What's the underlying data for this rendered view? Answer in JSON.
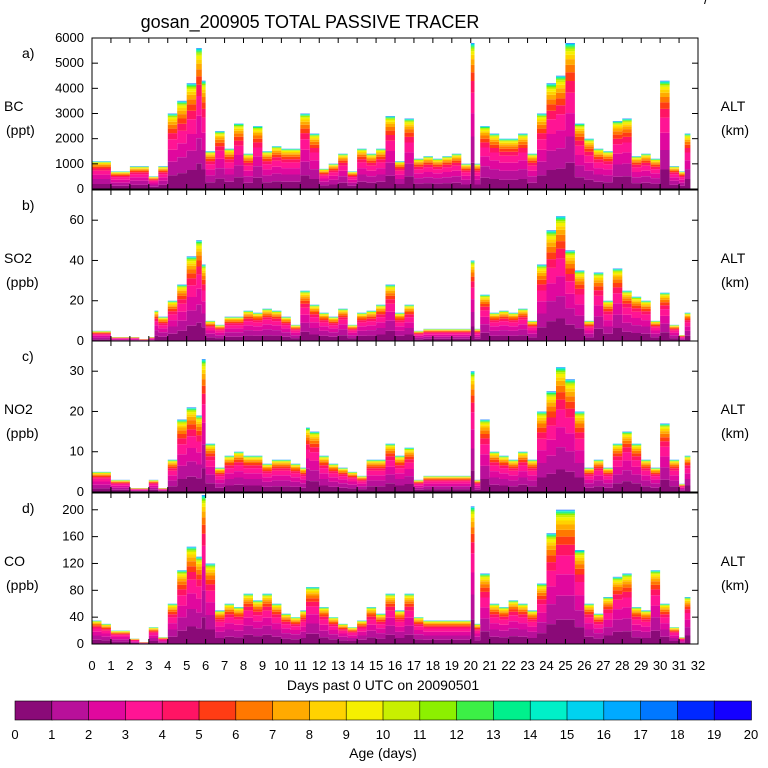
{
  "title": "gosan_200905 TOTAL PASSIVE TRACER",
  "xlabel": "Days past 0 UTC on 20090501",
  "x_ticks": [
    "0",
    "1",
    "2",
    "3",
    "4",
    "5",
    "6",
    "7",
    "8",
    "9",
    "10",
    "11",
    "12",
    "13",
    "14",
    "15",
    "16",
    "17",
    "18",
    "19",
    "20",
    "21",
    "22",
    "23",
    "24",
    "25",
    "26",
    "27",
    "28",
    "29",
    "30",
    "31",
    "32"
  ],
  "colorbar": {
    "label": "Age (days)",
    "ticks": [
      "0",
      "1",
      "2",
      "3",
      "4",
      "5",
      "6",
      "7",
      "8",
      "9",
      "10",
      "11",
      "12",
      "13",
      "14",
      "15",
      "16",
      "17",
      "18",
      "19",
      "20"
    ],
    "colors": [
      "#8a0a78",
      "#b8109a",
      "#e0089e",
      "#ff1494",
      "#ff1464",
      "#ff3c14",
      "#ff7800",
      "#ffaa00",
      "#ffd200",
      "#f5f000",
      "#c8f000",
      "#8cf000",
      "#3cf046",
      "#00f08c",
      "#00f0c8",
      "#00d2f0",
      "#00aaff",
      "#0078ff",
      "#0028ff",
      "#1400ff",
      "#7800ff"
    ]
  },
  "chart_data": [
    {
      "type": "area",
      "panel": "a)",
      "species": "BC",
      "unit": "(ppt)",
      "right_label": "ALT",
      "right_unit": "(km)",
      "xlim": [
        0,
        32
      ],
      "ylim": [
        0,
        6000
      ],
      "yticks": [
        "0",
        "1000",
        "2000",
        "3000",
        "4000",
        "5000",
        "6000"
      ],
      "x": [
        0,
        1,
        2,
        3,
        3.5,
        4,
        4.5,
        5,
        5.5,
        5.8,
        6,
        6.5,
        7,
        7.5,
        8,
        8.5,
        9,
        9.5,
        10,
        10.5,
        11,
        11.3,
        11.5,
        12,
        12.5,
        13,
        13.5,
        14,
        14.5,
        15,
        15.5,
        16,
        16.5,
        17,
        17.5,
        18,
        18.5,
        19,
        19.5,
        20,
        20.2,
        20.5,
        21,
        21.5,
        22,
        22.5,
        23,
        23.5,
        24,
        24.5,
        25,
        25.5,
        26,
        26.5,
        27,
        27.5,
        28,
        28.5,
        29,
        29.5,
        30,
        30.5,
        31,
        31.3
      ],
      "total": [
        1100,
        700,
        900,
        500,
        900,
        3000,
        3500,
        4200,
        5600,
        4300,
        1500,
        2300,
        1600,
        2600,
        1400,
        2500,
        1500,
        1700,
        1600,
        1600,
        3000,
        3000,
        2200,
        800,
        1000,
        1400,
        700,
        1600,
        1400,
        1600,
        2900,
        1100,
        2800,
        1200,
        1300,
        1200,
        1300,
        1400,
        1000,
        5800,
        1000,
        2500,
        2200,
        2000,
        2000,
        2200,
        1400,
        3000,
        4200,
        4500,
        5800,
        2600,
        2000,
        1600,
        1500,
        2700,
        2800,
        1300,
        1400,
        1200,
        4300,
        900,
        700,
        2200
      ]
    },
    {
      "type": "area",
      "panel": "b)",
      "species": "SO2",
      "unit": "(ppb)",
      "right_label": "ALT",
      "right_unit": "(km)",
      "xlim": [
        0,
        32
      ],
      "ylim": [
        0,
        75
      ],
      "yticks": [
        "0",
        "20",
        "40",
        "60"
      ],
      "x": [
        0,
        1,
        2,
        2.5,
        3,
        3.3,
        3.5,
        4,
        4.5,
        5,
        5.5,
        5.8,
        6,
        6.5,
        7,
        7.5,
        8,
        8.5,
        9,
        9.5,
        10,
        10.5,
        11,
        11.3,
        11.5,
        12,
        12.5,
        13,
        13.5,
        14,
        14.5,
        15,
        15.5,
        16,
        16.5,
        17,
        17.5,
        18,
        18.5,
        19,
        19.5,
        20,
        20.2,
        20.5,
        21,
        21.5,
        22,
        22.5,
        23,
        23.5,
        24,
        24.5,
        25,
        25.5,
        26,
        26.5,
        27,
        27.5,
        28,
        28.5,
        29,
        29.5,
        30,
        30.5,
        31,
        31.3
      ],
      "total": [
        5,
        2,
        2,
        1,
        2,
        15,
        12,
        20,
        28,
        42,
        50,
        38,
        10,
        8,
        12,
        12,
        15,
        14,
        16,
        15,
        12,
        8,
        25,
        25,
        18,
        14,
        12,
        16,
        8,
        14,
        15,
        18,
        28,
        14,
        18,
        5,
        6,
        6,
        6,
        6,
        6,
        40,
        6,
        23,
        14,
        15,
        14,
        16,
        10,
        38,
        55,
        62,
        45,
        35,
        10,
        34,
        20,
        36,
        25,
        22,
        20,
        10,
        24,
        8,
        3,
        14
      ]
    },
    {
      "type": "area",
      "panel": "c)",
      "species": "NO2",
      "unit": "(ppb)",
      "right_label": "ALT",
      "right_unit": "(km)",
      "xlim": [
        0,
        32
      ],
      "ylim": [
        0,
        37.5
      ],
      "yticks": [
        "0",
        "10",
        "20",
        "30"
      ],
      "x": [
        0,
        1,
        2,
        2.5,
        3,
        3.5,
        4,
        4.5,
        5,
        5.5,
        5.8,
        6,
        6.5,
        7,
        7.5,
        8,
        8.5,
        9,
        9.5,
        10,
        10.5,
        11,
        11.3,
        11.5,
        12,
        12.5,
        13,
        13.5,
        14,
        14.5,
        15,
        15.5,
        16,
        16.5,
        17,
        17.5,
        18,
        18.5,
        19,
        19.5,
        20,
        20.2,
        20.5,
        21,
        21.5,
        22,
        22.5,
        23,
        23.5,
        24,
        24.5,
        25,
        25.5,
        26,
        26.5,
        27,
        27.5,
        28,
        28.5,
        29,
        29.5,
        30,
        30.5,
        31,
        31.3
      ],
      "total": [
        5,
        3,
        1,
        1,
        3,
        1,
        8,
        18,
        21,
        19,
        33,
        12,
        6,
        9,
        10,
        9,
        9,
        7,
        8,
        8,
        7,
        6,
        16,
        15,
        9,
        7,
        6,
        5,
        4,
        8,
        8,
        12,
        9,
        11,
        3,
        4,
        4,
        4,
        4,
        4,
        30,
        3,
        18,
        10,
        9,
        8,
        10,
        8,
        20,
        25,
        31,
        28,
        20,
        6,
        8,
        6,
        12,
        15,
        12,
        8,
        6,
        17,
        8,
        2,
        9
      ]
    },
    {
      "type": "area",
      "panel": "d)",
      "species": "CO",
      "unit": "(ppb)",
      "right_label": "ALT",
      "right_unit": "(km)",
      "xlim": [
        0,
        32
      ],
      "ylim": [
        0,
        225
      ],
      "yticks": [
        "0",
        "40",
        "80",
        "120",
        "160",
        "200"
      ],
      "x": [
        0,
        0.5,
        1,
        2,
        2.5,
        3,
        3.5,
        4,
        4.5,
        5,
        5.5,
        5.8,
        6,
        6.5,
        7,
        7.5,
        8,
        8.5,
        9,
        9.5,
        10,
        10.5,
        11,
        11.3,
        11.5,
        12,
        12.5,
        13,
        13.5,
        14,
        14.5,
        15,
        15.5,
        16,
        16.5,
        17,
        17.5,
        18,
        18.5,
        19,
        19.5,
        20,
        20.2,
        20.5,
        21,
        21.5,
        22,
        22.5,
        23,
        23.5,
        24,
        24.5,
        25,
        25.5,
        26,
        26.5,
        27,
        27.5,
        28,
        28.5,
        29,
        29.5,
        30,
        30.5,
        31,
        31.3
      ],
      "total": [
        35,
        30,
        20,
        8,
        3,
        25,
        10,
        60,
        110,
        145,
        130,
        222,
        120,
        50,
        60,
        55,
        75,
        65,
        75,
        60,
        45,
        40,
        50,
        85,
        85,
        55,
        40,
        30,
        25,
        35,
        55,
        45,
        75,
        50,
        75,
        40,
        35,
        35,
        35,
        35,
        35,
        205,
        30,
        105,
        60,
        55,
        65,
        60,
        50,
        90,
        165,
        200,
        200,
        140,
        60,
        45,
        70,
        100,
        105,
        55,
        50,
        110,
        60,
        25,
        10,
        70
      ]
    }
  ]
}
